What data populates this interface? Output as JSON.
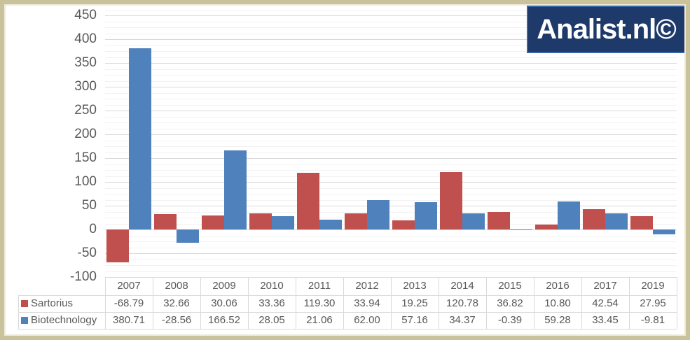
{
  "logo": {
    "text": "Analist.nl©",
    "bg_color": "#1e3a6a",
    "border_color": "#3a64a8",
    "text_color": "#ffffff"
  },
  "chart_data": {
    "type": "bar",
    "title": "",
    "xlabel": "",
    "ylabel": "",
    "categories": [
      "2007",
      "2008",
      "2009",
      "2010",
      "2011",
      "2012",
      "2013",
      "2014",
      "2015",
      "2016",
      "2017",
      "2019"
    ],
    "series": [
      {
        "name": "Sartorius",
        "color": "#c0504d",
        "values": [
          -68.79,
          32.66,
          30.06,
          33.36,
          119.3,
          33.94,
          19.25,
          120.78,
          36.82,
          10.8,
          42.54,
          27.95
        ]
      },
      {
        "name": "Biotechnology",
        "color": "#4f81bd",
        "values": [
          380.71,
          -28.56,
          166.52,
          28.05,
          21.06,
          62.0,
          57.16,
          34.37,
          -0.39,
          59.28,
          33.45,
          -9.81
        ]
      }
    ],
    "ylim": [
      -100,
      450
    ],
    "ytick_step": 50,
    "yminor_step": 12.5,
    "ytick_labels": [
      "450",
      "400",
      "350",
      "300",
      "250",
      "200",
      "150",
      "100",
      "50",
      "0",
      "-50",
      "-100"
    ],
    "grid": "major-and-minor horizontal",
    "legend_position": "left column of data table",
    "axis_text_color": "#595959",
    "grid_major_color": "#d9d9d9",
    "grid_minor_color": "#f2f2f2"
  },
  "data_table": {
    "line_color": "#d9d9d9",
    "header_years": [
      "2007",
      "2008",
      "2009",
      "2010",
      "2011",
      "2012",
      "2013",
      "2014",
      "2015",
      "2016",
      "2017",
      "2019"
    ],
    "rows": [
      {
        "label": "Sartorius",
        "chip_color": "#c0504d",
        "values": [
          "-68.79",
          "32.66",
          "30.06",
          "33.36",
          "119.30",
          "33.94",
          "19.25",
          "120.78",
          "36.82",
          "10.80",
          "42.54",
          "27.95"
        ]
      },
      {
        "label": "Biotechnology",
        "chip_color": "#4f81bd",
        "values": [
          "380.71",
          "-28.56",
          "166.52",
          "28.05",
          "21.06",
          "62.00",
          "57.16",
          "34.37",
          "-0.39",
          "59.28",
          "33.45",
          "-9.81"
        ]
      }
    ]
  }
}
